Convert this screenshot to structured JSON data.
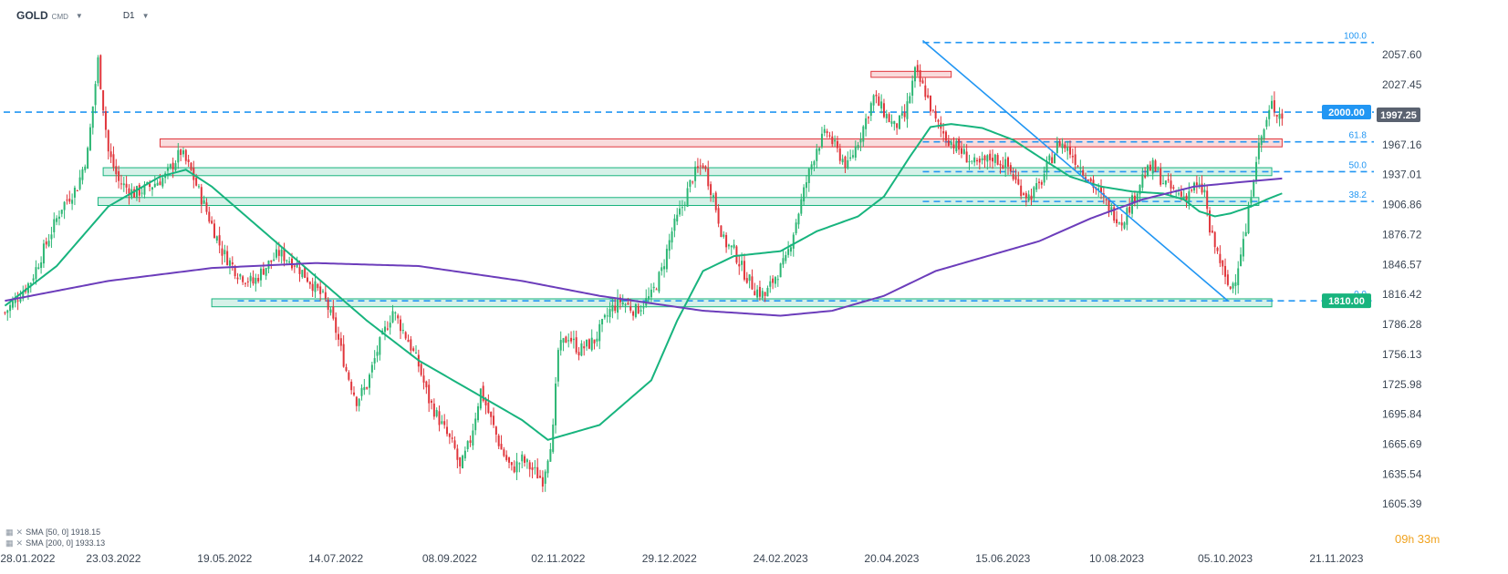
{
  "header": {
    "symbol": "GOLD",
    "market": "CMD",
    "timeframe": "D1"
  },
  "countdown": {
    "hours": "09",
    "hours_unit": "h",
    "minutes": "33",
    "minutes_unit": "m"
  },
  "legend": [
    {
      "label": "SMA",
      "params": "[50, 0]",
      "value": "1918.15"
    },
    {
      "label": "SMA",
      "params": "[200, 0]",
      "value": "1933.13"
    }
  ],
  "colors": {
    "up": "#2bb673",
    "down": "#e0353b",
    "sma50": "#18b47e",
    "sma200": "#6c3dbb",
    "level": "#2196f3",
    "resistance_zone": "#e0353b",
    "support_zone": "#18b47e",
    "price_tag": "#5a6270",
    "tag_2000": "#2196f3",
    "tag_1810": "#18b47e"
  },
  "chart_data": {
    "type": "candlestick",
    "symbol": "GOLD",
    "timeframe": "D1",
    "ylim": [
      1590,
      2100
    ],
    "y_ticks": [
      2057.6,
      2027.45,
      1997.25,
      1967.16,
      1937.01,
      1906.86,
      1876.72,
      1846.57,
      1816.42,
      1786.28,
      1756.13,
      1725.98,
      1695.84,
      1665.69,
      1635.54,
      1605.39
    ],
    "y_tick_labels": [
      "2057.60",
      "2027.45",
      "1997.25",
      "1967.16",
      "1937.01",
      "1906.86",
      "1876.72",
      "1846.57",
      "1816.42",
      "1786.28",
      "1756.13",
      "1725.98",
      "1695.84",
      "1665.69",
      "1635.54",
      "1605.39"
    ],
    "x_ticks": [
      "28.01.2022",
      "23.03.2022",
      "19.05.2022",
      "14.07.2022",
      "08.09.2022",
      "02.11.2022",
      "29.12.2022",
      "24.02.2023",
      "20.04.2023",
      "15.06.2023",
      "10.08.2023",
      "05.10.2023",
      "21.11.2023"
    ],
    "last_price": 1997.25,
    "price_path": [
      [
        0,
        1798
      ],
      [
        10,
        1830
      ],
      [
        22,
        1905
      ],
      [
        28,
        1925
      ],
      [
        32,
        1960
      ],
      [
        36,
        2052
      ],
      [
        40,
        1960
      ],
      [
        44,
        1930
      ],
      [
        50,
        1918
      ],
      [
        56,
        1925
      ],
      [
        62,
        1935
      ],
      [
        68,
        1960
      ],
      [
        72,
        1940
      ],
      [
        78,
        1900
      ],
      [
        84,
        1860
      ],
      [
        90,
        1838
      ],
      [
        96,
        1828
      ],
      [
        100,
        1842
      ],
      [
        106,
        1858
      ],
      [
        112,
        1848
      ],
      [
        118,
        1830
      ],
      [
        124,
        1810
      ],
      [
        128,
        1780
      ],
      [
        132,
        1740
      ],
      [
        136,
        1710
      ],
      [
        140,
        1725
      ],
      [
        144,
        1760
      ],
      [
        150,
        1800
      ],
      [
        156,
        1770
      ],
      [
        160,
        1745
      ],
      [
        164,
        1710
      ],
      [
        170,
        1680
      ],
      [
        174,
        1660
      ],
      [
        176,
        1640
      ],
      [
        180,
        1670
      ],
      [
        184,
        1720
      ],
      [
        188,
        1690
      ],
      [
        192,
        1660
      ],
      [
        196,
        1640
      ],
      [
        200,
        1650
      ],
      [
        204,
        1640
      ],
      [
        208,
        1630
      ],
      [
        212,
        1680
      ],
      [
        214,
        1760
      ],
      [
        218,
        1775
      ],
      [
        222,
        1760
      ],
      [
        228,
        1770
      ],
      [
        234,
        1800
      ],
      [
        238,
        1810
      ],
      [
        244,
        1800
      ],
      [
        250,
        1815
      ],
      [
        254,
        1840
      ],
      [
        258,
        1880
      ],
      [
        262,
        1905
      ],
      [
        266,
        1935
      ],
      [
        270,
        1948
      ],
      [
        274,
        1915
      ],
      [
        278,
        1870
      ],
      [
        282,
        1860
      ],
      [
        286,
        1838
      ],
      [
        290,
        1822
      ],
      [
        294,
        1815
      ],
      [
        298,
        1835
      ],
      [
        302,
        1850
      ],
      [
        306,
        1890
      ],
      [
        310,
        1930
      ],
      [
        314,
        1965
      ],
      [
        318,
        1980
      ],
      [
        322,
        1960
      ],
      [
        326,
        1945
      ],
      [
        332,
        1985
      ],
      [
        336,
        2015
      ],
      [
        340,
        2000
      ],
      [
        344,
        1985
      ],
      [
        348,
        1995
      ],
      [
        352,
        2040
      ],
      [
        356,
        2020
      ],
      [
        360,
        1990
      ],
      [
        364,
        1975
      ],
      [
        370,
        1960
      ],
      [
        376,
        1945
      ],
      [
        382,
        1955
      ],
      [
        388,
        1945
      ],
      [
        392,
        1925
      ],
      [
        396,
        1915
      ],
      [
        400,
        1925
      ],
      [
        404,
        1950
      ],
      [
        408,
        1970
      ],
      [
        412,
        1960
      ],
      [
        416,
        1945
      ],
      [
        420,
        1930
      ],
      [
        424,
        1915
      ],
      [
        428,
        1900
      ],
      [
        432,
        1890
      ],
      [
        436,
        1910
      ],
      [
        440,
        1935
      ],
      [
        444,
        1945
      ],
      [
        448,
        1930
      ],
      [
        452,
        1920
      ],
      [
        456,
        1915
      ],
      [
        460,
        1925
      ],
      [
        464,
        1920
      ],
      [
        466,
        1880
      ],
      [
        470,
        1850
      ],
      [
        472,
        1830
      ],
      [
        474,
        1822
      ],
      [
        476,
        1835
      ],
      [
        478,
        1860
      ],
      [
        480,
        1880
      ],
      [
        482,
        1920
      ],
      [
        484,
        1955
      ],
      [
        486,
        1975
      ],
      [
        488,
        1990
      ],
      [
        490,
        2008
      ],
      [
        492,
        2000
      ],
      [
        494,
        1997.25
      ]
    ],
    "series": [
      {
        "name": "SMA [50, 0]",
        "value_label": "1918.15",
        "points": [
          [
            0,
            1805
          ],
          [
            20,
            1845
          ],
          [
            40,
            1905
          ],
          [
            60,
            1935
          ],
          [
            70,
            1942
          ],
          [
            80,
            1925
          ],
          [
            100,
            1880
          ],
          [
            120,
            1835
          ],
          [
            140,
            1790
          ],
          [
            160,
            1750
          ],
          [
            180,
            1720
          ],
          [
            200,
            1690
          ],
          [
            210,
            1670
          ],
          [
            230,
            1685
          ],
          [
            250,
            1730
          ],
          [
            260,
            1790
          ],
          [
            270,
            1840
          ],
          [
            282,
            1855
          ],
          [
            300,
            1860
          ],
          [
            314,
            1880
          ],
          [
            330,
            1895
          ],
          [
            340,
            1915
          ],
          [
            350,
            1955
          ],
          [
            358,
            1985
          ],
          [
            366,
            1988
          ],
          [
            378,
            1984
          ],
          [
            390,
            1972
          ],
          [
            400,
            1955
          ],
          [
            412,
            1935
          ],
          [
            424,
            1925
          ],
          [
            436,
            1920
          ],
          [
            448,
            1918
          ],
          [
            456,
            1912
          ],
          [
            462,
            1900
          ],
          [
            468,
            1895
          ],
          [
            474,
            1898
          ],
          [
            482,
            1905
          ],
          [
            488,
            1912
          ],
          [
            494,
            1918.15
          ]
        ]
      },
      {
        "name": "SMA [200, 0]",
        "value_label": "1933.13",
        "points": [
          [
            0,
            1810
          ],
          [
            40,
            1830
          ],
          [
            80,
            1843
          ],
          [
            120,
            1848
          ],
          [
            160,
            1845
          ],
          [
            200,
            1830
          ],
          [
            230,
            1815
          ],
          [
            270,
            1800
          ],
          [
            300,
            1795
          ],
          [
            320,
            1800
          ],
          [
            340,
            1815
          ],
          [
            360,
            1840
          ],
          [
            380,
            1855
          ],
          [
            400,
            1870
          ],
          [
            420,
            1893
          ],
          [
            440,
            1912
          ],
          [
            460,
            1925
          ],
          [
            480,
            1930
          ],
          [
            494,
            1933.13
          ]
        ]
      }
    ],
    "levels": [
      {
        "value": 2070,
        "label": "100.0",
        "style": "dashed"
      },
      {
        "value": 2000,
        "label": "2000.00",
        "style": "dashed"
      },
      {
        "value": 1970,
        "label": "61.8",
        "style": "dashed"
      },
      {
        "value": 1940,
        "label": "50.0",
        "style": "dashed"
      },
      {
        "value": 1910,
        "label": "38.2",
        "style": "dashed"
      },
      {
        "value": 1810,
        "label": "1810.00",
        "style": "dashed"
      },
      {
        "value": 1810,
        "label": "0.0",
        "style": "none"
      }
    ],
    "zones": [
      {
        "kind": "resistance",
        "x": [
          60,
          494
        ],
        "y": [
          1965,
          1973
        ]
      },
      {
        "kind": "resistance",
        "x": [
          335,
          366
        ],
        "y": [
          2035,
          2041
        ]
      },
      {
        "kind": "support",
        "x": [
          38,
          490
        ],
        "y": [
          1936,
          1944
        ]
      },
      {
        "kind": "support",
        "x": [
          36,
          485
        ],
        "y": [
          1906,
          1914
        ]
      },
      {
        "kind": "support",
        "x": [
          80,
          490
        ],
        "y": [
          1804,
          1812
        ]
      }
    ],
    "fib_line": {
      "from": [
        355,
        2072
      ],
      "to": [
        473,
        1810
      ]
    }
  }
}
